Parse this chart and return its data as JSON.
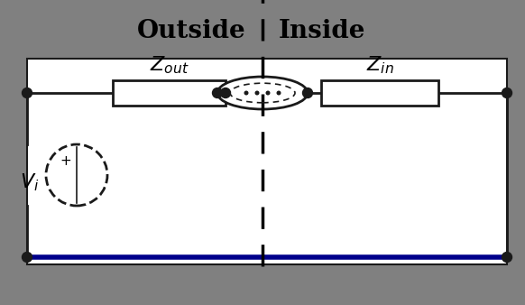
{
  "bg_gray": "#808080",
  "bg_white": "#ffffff",
  "wire_color": "#1a1a1a",
  "blue_wire_color": "#00008B",
  "dashed_line_color": "#000000",
  "outside_label": "Outside",
  "inside_label": "Inside",
  "z_out_label": "$Z_{out}$",
  "z_in_label": "$Z_{in}$",
  "v_label": "$V_i$",
  "font_size_header": 20,
  "font_size_z": 16,
  "font_size_v": 16,
  "fig_width": 5.82,
  "fig_height": 3.38,
  "dpi": 100
}
